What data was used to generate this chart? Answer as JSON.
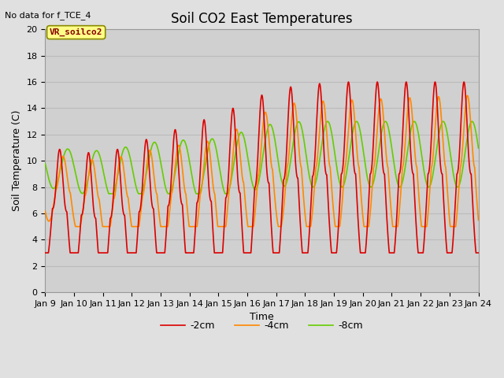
{
  "title": "Soil CO2 East Temperatures",
  "subtitle": "No data for f_TCE_4",
  "xlabel": "Time",
  "ylabel": "Soil Temperature (C)",
  "ylim": [
    0,
    20
  ],
  "xlim_days": [
    9,
    24
  ],
  "x_ticks": [
    9,
    10,
    11,
    12,
    13,
    14,
    15,
    16,
    17,
    18,
    19,
    20,
    21,
    22,
    23,
    24
  ],
  "x_tick_labels": [
    "Jan 9",
    "Jan 10",
    "Jan 11",
    "Jan 12",
    "Jan 13",
    "Jan 14",
    "Jan 15",
    "Jan 16",
    "Jan 17",
    "Jan 18",
    "Jan 19",
    "Jan 20",
    "Jan 21",
    "Jan 22",
    "Jan 23",
    "Jan 24"
  ],
  "fig_bg_color": "#e0e0e0",
  "plot_bg_color": "#d0d0d0",
  "grid_color": "#bbbbbb",
  "line_2cm_color": "#dd0000",
  "line_4cm_color": "#ff8800",
  "line_8cm_color": "#66cc00",
  "line_width": 1.2,
  "legend_labels": [
    "-2cm",
    "-4cm",
    "-8cm"
  ],
  "annotation_text": "VR_soilco2",
  "annotation_box_facecolor": "#ffff88",
  "annotation_box_edgecolor": "#888800",
  "annotation_text_color": "#880000",
  "title_fontsize": 12,
  "axis_label_fontsize": 9,
  "tick_fontsize": 8
}
